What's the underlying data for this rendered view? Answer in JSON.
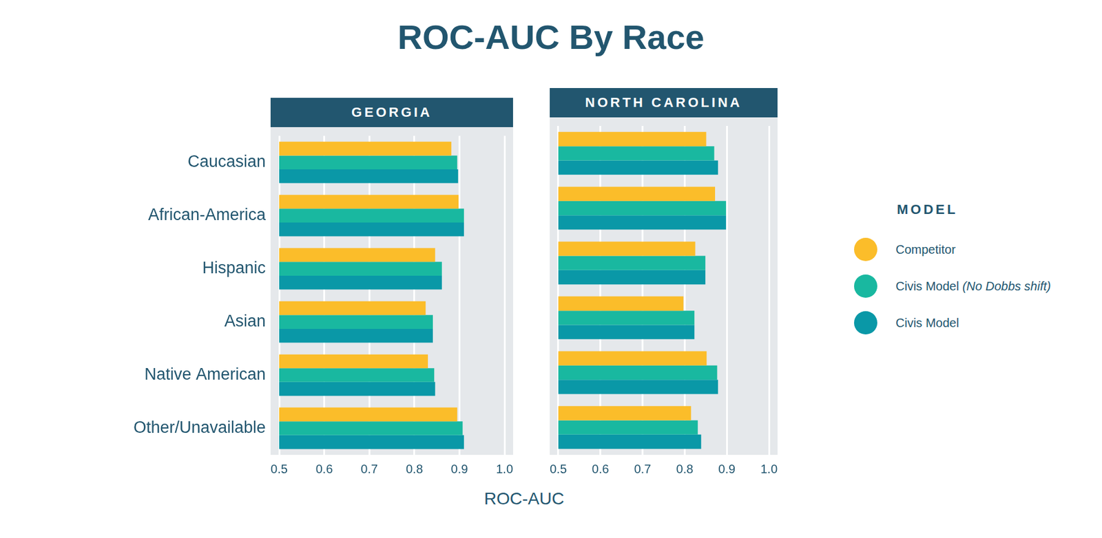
{
  "title": "ROC-AUC By Race",
  "xlabel": "ROC-AUC",
  "legend_title": "MODEL",
  "chart_data": [
    {
      "type": "bar",
      "title": "GEORGIA",
      "orientation": "horizontal",
      "grid": true,
      "legend": "right",
      "categories": [
        "Caucasian",
        "African-America",
        "Hispanic",
        "Asian",
        "Native American",
        "Other/Unavailable"
      ],
      "series": [
        {
          "name": "Competitor",
          "color": "#fbbd2a",
          "values": [
            0.882,
            0.898,
            0.846,
            0.825,
            0.83,
            0.895
          ]
        },
        {
          "name": "Civis Model (No Dobbs shift)",
          "color": "#19b8a0",
          "values": [
            0.895,
            0.91,
            0.861,
            0.841,
            0.844,
            0.907
          ]
        },
        {
          "name": "Civis Model",
          "color": "#0a98a7",
          "values": [
            0.897,
            0.91,
            0.861,
            0.841,
            0.846,
            0.91
          ]
        }
      ],
      "xlim": [
        0.5,
        1
      ],
      "xticks": [
        0.5,
        0.6,
        0.7,
        0.8,
        0.9,
        {
          "value": 1,
          "label": "1.0"
        }
      ]
    },
    {
      "type": "bar",
      "title": "NORTH CAROLINA",
      "orientation": "horizontal",
      "grid": true,
      "legend": "right",
      "tick_labels": "x",
      "categories": [
        "Caucasian",
        "African-America",
        "Hispanic",
        "Asian",
        "Native American",
        "Other/Unavailable"
      ],
      "series": [
        {
          "name": "Competitor",
          "color": "#fbbd2a",
          "values": [
            0.851,
            0.872,
            0.825,
            0.797,
            0.852,
            0.815
          ]
        },
        {
          "name": "Civis Model (No Dobbs shift)",
          "color": "#19b8a0",
          "values": [
            0.87,
            0.898,
            0.849,
            0.823,
            0.877,
            0.831
          ]
        },
        {
          "name": "Civis Model",
          "color": "#0a98a7",
          "values": [
            0.879,
            0.898,
            0.849,
            0.823,
            0.879,
            0.839
          ]
        }
      ],
      "xlim": [
        0.5,
        1
      ],
      "xticks": [
        0.5,
        0.6,
        0.7,
        0.8,
        0.9,
        {
          "value": 1,
          "label": "1.0"
        }
      ]
    }
  ]
}
